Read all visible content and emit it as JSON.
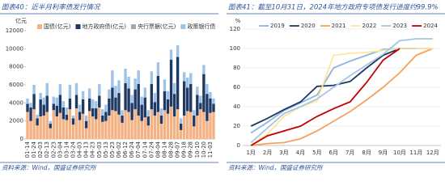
{
  "chart_data": [
    {
      "type": "bar",
      "stacked": true,
      "title": "图表40：近半月利率债发行情况",
      "ylabel": "亿元",
      "source": "资料来源：Wind，国盛证券研究所",
      "ylim": [
        0,
        12000
      ],
      "yticks": [
        0,
        2000,
        4000,
        6000,
        8000,
        10000,
        12000
      ],
      "grid": false,
      "legend": "top",
      "categories": [
        "01-14",
        null,
        "01-24",
        null,
        "02-03",
        null,
        "02-13",
        null,
        "02-23",
        null,
        "03-04",
        null,
        "03-14",
        null,
        "03-24",
        null,
        "04-03",
        null,
        "04-13",
        null,
        "04-23",
        null,
        "05-03",
        null,
        "05-13",
        null,
        "05-23",
        null,
        "06-02",
        null,
        "06-12",
        null,
        "06-24",
        null,
        "07-04",
        null,
        "07-14",
        null,
        "07-24",
        null,
        "08-04",
        null,
        "08-14",
        null,
        "08-28",
        null,
        "09-07",
        null,
        "09-18",
        null,
        "09-28",
        null,
        "10-10",
        null,
        "10-20",
        null,
        "11-03",
        null
      ],
      "series": [
        {
          "name": "国债(亿元)",
          "color": "#f4b183",
          "values": [
            3000,
            2000,
            3300,
            1500,
            2500,
            2600,
            3000,
            1200,
            3200,
            2500,
            2900,
            2200,
            2100,
            3300,
            1600,
            3400,
            2100,
            2800,
            1200,
            3100,
            2500,
            2200,
            3500,
            1900,
            2000,
            2600,
            3200,
            3100,
            2700,
            1800,
            3200,
            3000,
            2100,
            3300,
            2600,
            2000,
            2400,
            1500,
            3300,
            2600,
            3000,
            1700,
            3200,
            2800,
            3600,
            2500,
            3300,
            1000,
            2600,
            3100,
            3000,
            1400,
            2600,
            3300,
            3000,
            2000,
            2900,
            3000
          ]
        },
        {
          "name": "地方政府债(亿元)",
          "color": "#203864",
          "values": [
            900,
            1500,
            1700,
            800,
            1900,
            1200,
            1800,
            500,
            700,
            1200,
            2000,
            1300,
            600,
            1200,
            700,
            1500,
            900,
            1600,
            800,
            1400,
            900,
            1200,
            1300,
            700,
            1000,
            1900,
            2500,
            1500,
            2400,
            800,
            3000,
            2600,
            1900,
            2200,
            3500,
            1800,
            2200,
            1000,
            2800,
            1500,
            4000,
            900,
            2100,
            1600,
            5200,
            2500,
            5800,
            700,
            3800,
            2600,
            3100,
            1200,
            2300,
            700,
            4200,
            3000,
            1600,
            900
          ]
        },
        {
          "name": "央行票据(亿元)",
          "color": "#a6a6a6",
          "values": [
            0,
            0,
            0,
            0,
            0,
            0,
            0,
            0,
            0,
            0,
            0,
            0,
            0,
            0,
            0,
            0,
            0,
            0,
            0,
            0,
            0,
            0,
            0,
            0,
            0,
            0,
            0,
            0,
            0,
            0,
            0,
            0,
            0,
            0,
            0,
            0,
            0,
            0,
            0,
            0,
            0,
            0,
            0,
            0,
            0,
            0,
            0,
            0,
            0,
            0,
            0,
            0,
            0,
            0,
            0,
            0,
            0,
            0
          ]
        },
        {
          "name": "政策银行债",
          "color": "#9dc3e6",
          "values": [
            600,
            500,
            1000,
            400,
            700,
            800,
            1400,
            300,
            800,
            900,
            1200,
            700,
            800,
            1500,
            300,
            1300,
            800,
            900,
            600,
            1100,
            1000,
            800,
            1300,
            700,
            800,
            1000,
            1900,
            1300,
            1400,
            600,
            1600,
            1300,
            900,
            1200,
            1500,
            900,
            1100,
            700,
            1400,
            1000,
            1500,
            800,
            1300,
            900,
            1100,
            1200,
            1300,
            600,
            1000,
            1100,
            1200,
            600,
            900,
            800,
            1000,
            1100,
            700,
            600
          ]
        }
      ]
    },
    {
      "type": "line",
      "title": "图表41：截至10月31日，2024年地方政府专项债发行进度约99.9%",
      "ylabel": "%",
      "source": "资料来源：Wind，国盛证券研究所",
      "ylim": [
        0,
        120
      ],
      "yticks": [
        0,
        20,
        40,
        60,
        80,
        100,
        120
      ],
      "grid": true,
      "legend": "top",
      "categories": [
        "1月",
        "2月",
        "3月",
        "4月",
        "5月",
        "6月",
        "7月",
        "8月",
        "9月",
        "10月",
        "11月",
        "12月"
      ],
      "series": [
        {
          "name": "2019",
          "color": "#8db4e2",
          "values": [
            13,
            24,
            36,
            44,
            52,
            80,
            87,
            93,
            99,
            100,
            100,
            100
          ]
        },
        {
          "name": "2020",
          "color": "#1f3864",
          "values": [
            20,
            28,
            37,
            45,
            61,
            62,
            66,
            80,
            93,
            100,
            100,
            null
          ]
        },
        {
          "name": "2021",
          "color": "#f4a15d",
          "values": [
            0,
            2,
            3,
            7,
            15,
            25,
            35,
            47,
            60,
            75,
            93,
            100
          ]
        },
        {
          "name": "2022",
          "color": "#ffe699",
          "values": [
            0,
            12,
            30,
            40,
            46,
            93,
            95,
            96,
            98,
            100,
            100,
            100
          ]
        },
        {
          "name": "2023",
          "color": "#a9c4e4",
          "values": [
            3,
            18,
            33,
            40,
            48,
            60,
            72,
            83,
            94,
            108,
            110,
            110
          ]
        },
        {
          "name": "2024",
          "color": "#c00000",
          "values": [
            0,
            10,
            15,
            20,
            30,
            38,
            45,
            65,
            88,
            99.9,
            null,
            null
          ]
        }
      ]
    }
  ]
}
